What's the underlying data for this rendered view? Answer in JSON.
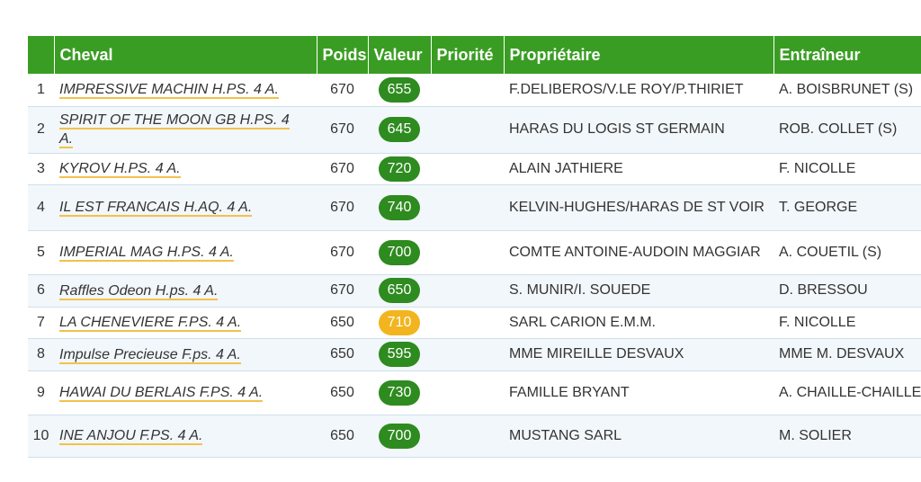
{
  "columns": {
    "rank": "",
    "horse": "Cheval",
    "weight": "Poids",
    "value": "Valeur",
    "priority": "Priorité",
    "owner": "Propriétaire",
    "trainer": "Entraîneur"
  },
  "colors": {
    "header_bg": "#3a9d23",
    "badge_green": "#2e8b1f",
    "badge_yellow": "#f2b51f",
    "link_underline": "#f3c14a"
  },
  "rows": [
    {
      "rank": "1",
      "horse": "IMPRESSIVE MACHIN H.PS. 4 A.",
      "weight": "670",
      "value": "655",
      "priority": "",
      "owner": "F.DELIBEROS/V.LE ROY/P.THIRIET",
      "trainer": "A. BOISBRUNET (S)",
      "badge": "green"
    },
    {
      "rank": "2",
      "horse": "SPIRIT OF THE MOON GB H.PS. 4 A.",
      "weight": "670",
      "value": "645",
      "priority": "",
      "owner": "HARAS DU LOGIS ST GERMAIN",
      "trainer": "ROB. COLLET (S)",
      "badge": "green"
    },
    {
      "rank": "3",
      "horse": "KYROV H.PS. 4 A.",
      "weight": "670",
      "value": "720",
      "priority": "",
      "owner": "ALAIN JATHIERE",
      "trainer": "F. NICOLLE",
      "badge": "green"
    },
    {
      "rank": "4",
      "horse": "IL EST FRANCAIS H.AQ. 4 A.",
      "weight": "670",
      "value": "740",
      "priority": "",
      "owner": "KELVIN-HUGHES/HARAS DE ST VOIR",
      "trainer": "T. GEORGE",
      "badge": "green"
    },
    {
      "rank": "5",
      "horse": "IMPERIAL MAG H.PS. 4 A.",
      "weight": "670",
      "value": "700",
      "priority": "",
      "owner": "COMTE ANTOINE-AUDOIN MAGGIAR",
      "trainer": "A. COUETIL (S)",
      "badge": "green"
    },
    {
      "rank": "6",
      "horse": "Raffles Odeon H.ps. 4 A.",
      "weight": "670",
      "value": "650",
      "priority": "",
      "owner": "S. MUNIR/I. SOUEDE",
      "trainer": "D. BRESSOU",
      "badge": "green"
    },
    {
      "rank": "7",
      "horse": "LA CHENEVIERE F.PS. 4 A.",
      "weight": "650",
      "value": "710",
      "priority": "",
      "owner": "SARL CARION E.M.M.",
      "trainer": "F. NICOLLE",
      "badge": "yellow"
    },
    {
      "rank": "8",
      "horse": "Impulse Precieuse F.ps. 4 A.",
      "weight": "650",
      "value": "595",
      "priority": "",
      "owner": "MME MIREILLE DESVAUX",
      "trainer": "MME M. DESVAUX",
      "badge": "green"
    },
    {
      "rank": "9",
      "horse": "HAWAI DU BERLAIS F.PS. 4 A.",
      "weight": "650",
      "value": "730",
      "priority": "",
      "owner": "FAMILLE BRYANT",
      "trainer": "A. CHAILLE-CHAILLE",
      "badge": "green"
    },
    {
      "rank": "10",
      "horse": "INE ANJOU F.PS. 4 A.",
      "weight": "650",
      "value": "700",
      "priority": "",
      "owner": "MUSTANG SARL",
      "trainer": "M. SOLIER",
      "badge": "green"
    }
  ]
}
